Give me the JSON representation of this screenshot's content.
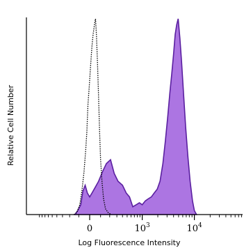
{
  "chart_data": {
    "type": "area",
    "xlabel": "Log Fluorescence Intensity",
    "ylabel": "Relative Cell Number",
    "x_scale": "biexponential",
    "x_ticks": [
      {
        "value": 0,
        "base": "0",
        "exp": ""
      },
      {
        "value": 1000,
        "base": "10",
        "exp": "3"
      },
      {
        "value": 10000,
        "base": "10",
        "exp": "4"
      }
    ],
    "ylim": [
      0,
      1
    ],
    "series": [
      {
        "name": "",
        "style": "dotted-outline",
        "color": "#000000",
        "points": [
          [
            -150,
            0
          ],
          [
            -120,
            0.01
          ],
          [
            -90,
            0.05
          ],
          [
            -70,
            0.12
          ],
          [
            -50,
            0.22
          ],
          [
            -35,
            0.33
          ],
          [
            -25,
            0.42
          ],
          [
            -15,
            0.56
          ],
          [
            -8,
            0.62
          ],
          [
            -3,
            0.66
          ],
          [
            8,
            0.76
          ],
          [
            20,
            0.86
          ],
          [
            30,
            0.92
          ],
          [
            45,
            0.98
          ],
          [
            52,
            1.0
          ],
          [
            60,
            0.92
          ],
          [
            70,
            0.78
          ],
          [
            80,
            0.6
          ],
          [
            90,
            0.42
          ],
          [
            100,
            0.28
          ],
          [
            115,
            0.16
          ],
          [
            130,
            0.08
          ],
          [
            150,
            0.03
          ],
          [
            180,
            0.01
          ],
          [
            220,
            0
          ]
        ]
      },
      {
        "name": "",
        "style": "filled",
        "color": "#a86ee0",
        "stroke": "#5a1fa0",
        "points": [
          [
            -140,
            0
          ],
          [
            -110,
            0.02
          ],
          [
            -80,
            0.05
          ],
          [
            -60,
            0.12
          ],
          [
            -40,
            0.15
          ],
          [
            -20,
            0.11
          ],
          [
            0,
            0.09
          ],
          [
            20,
            0.11
          ],
          [
            50,
            0.14
          ],
          [
            80,
            0.17
          ],
          [
            120,
            0.22
          ],
          [
            160,
            0.26
          ],
          [
            210,
            0.28
          ],
          [
            260,
            0.21
          ],
          [
            320,
            0.17
          ],
          [
            400,
            0.15
          ],
          [
            480,
            0.11
          ],
          [
            560,
            0.09
          ],
          [
            650,
            0.04
          ],
          [
            760,
            0.05
          ],
          [
            880,
            0.06
          ],
          [
            1000,
            0.05
          ],
          [
            1150,
            0.07
          ],
          [
            1300,
            0.08
          ],
          [
            1500,
            0.09
          ],
          [
            1700,
            0.11
          ],
          [
            1950,
            0.13
          ],
          [
            2200,
            0.17
          ],
          [
            2500,
            0.26
          ],
          [
            2800,
            0.38
          ],
          [
            3100,
            0.5
          ],
          [
            3400,
            0.62
          ],
          [
            3700,
            0.72
          ],
          [
            4000,
            0.82
          ],
          [
            4300,
            0.92
          ],
          [
            4600,
            0.97
          ],
          [
            4900,
            1.0
          ],
          [
            5300,
            0.9
          ],
          [
            5700,
            0.78
          ],
          [
            6200,
            0.62
          ],
          [
            6800,
            0.45
          ],
          [
            7500,
            0.3
          ],
          [
            8300,
            0.17
          ],
          [
            9200,
            0.07
          ],
          [
            10000,
            0.02
          ],
          [
            11000,
            0.0
          ]
        ]
      }
    ]
  },
  "colors": {
    "axis": "#000000",
    "fill": "#a86ee0",
    "fill_stroke": "#5a1fa0"
  }
}
